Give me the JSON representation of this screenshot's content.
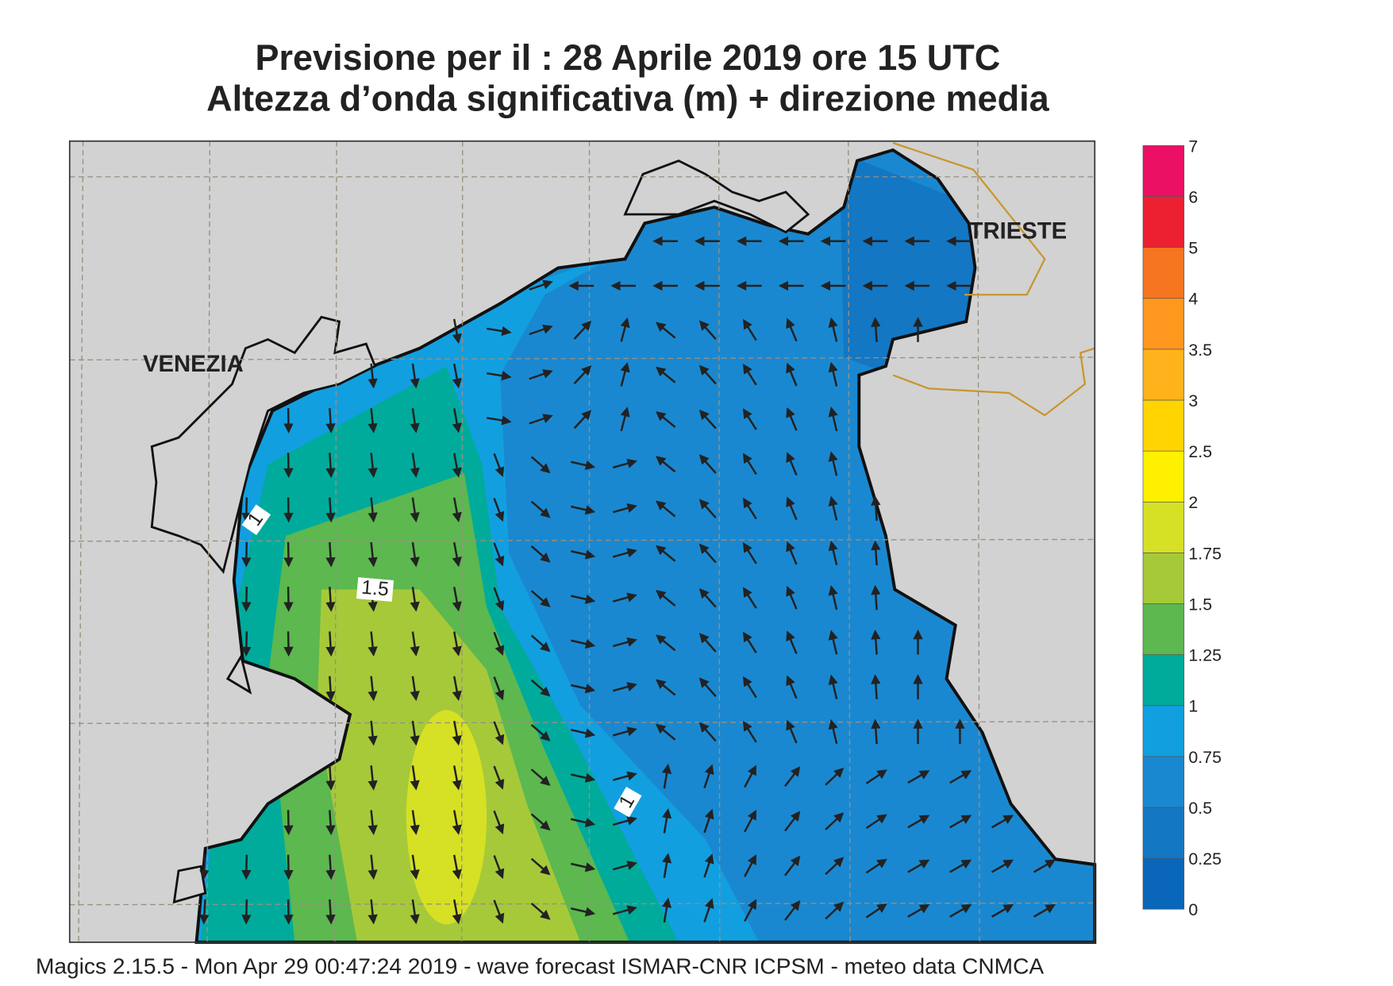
{
  "header": {
    "title": "Previsione per il  :  28   Aprile  2019   ore 15 UTC",
    "subtitle": "Altezza d’onda significativa (m) + direzione media"
  },
  "map": {
    "place_labels": [
      "VENEZIA",
      "TRIESTE"
    ],
    "contour_labels": [
      "1",
      "1.5",
      "1"
    ]
  },
  "colorbar": {
    "labels": [
      "0",
      "0.25",
      "0.5",
      "0.75",
      "1",
      "1.25",
      "1.5",
      "1.75",
      "2",
      "2.5",
      "3",
      "3.5",
      "4",
      "5",
      "6",
      "7"
    ],
    "colors": [
      "#0a66b8",
      "#1377c4",
      "#1a88d0",
      "#129fe0",
      "#00ab9c",
      "#5cb84f",
      "#a6c93a",
      "#d6e024",
      "#fff000",
      "#ffd400",
      "#ffb21c",
      "#ff961e",
      "#f57520",
      "#ec2030",
      "#ec1065"
    ]
  },
  "footer": "Magics 2.15.5 - Mon Apr 29 00:47:24 2019 - wave forecast  ISMAR-CNR  ICPSM - meteo data   CNMCA"
}
